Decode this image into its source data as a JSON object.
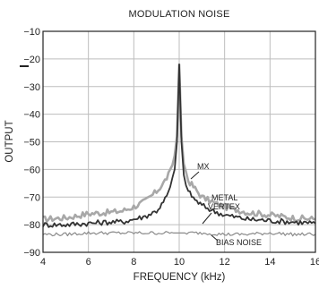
{
  "chart_data": {
    "type": "line",
    "title": "MODULATION NOISE",
    "xlabel": "FREQUENCY (kHz)",
    "ylabel": "OUTPUT",
    "xlim": [
      4,
      16
    ],
    "ylim": [
      -90,
      -10
    ],
    "xticks": [
      "4",
      "6",
      "8",
      "10",
      "12",
      "14",
      "16"
    ],
    "yticks": [
      "−10",
      "−20",
      "−30",
      "−40",
      "−50",
      "−60",
      "−70",
      "−80",
      "−90"
    ],
    "grid": true,
    "series": [
      {
        "name": "MX",
        "color": "#a8a8a8",
        "x": [
          4,
          5,
          6,
          7,
          7.5,
          8,
          8.5,
          9,
          9.3,
          9.6,
          9.8,
          9.9,
          10,
          10.1,
          10.2,
          10.4,
          10.7,
          11,
          11.5,
          12,
          13,
          14,
          15,
          16
        ],
        "y": [
          -78,
          -77.5,
          -76,
          -75.5,
          -75,
          -73.5,
          -71.5,
          -68,
          -65,
          -61,
          -55,
          -48,
          -22,
          -48,
          -58,
          -64,
          -67,
          -70,
          -72,
          -73.5,
          -75.5,
          -76.5,
          -77.5,
          -78
        ]
      },
      {
        "name": "METAL VERTEX",
        "color": "#333333",
        "x": [
          4,
          5,
          6,
          7,
          7.5,
          8,
          8.5,
          9,
          9.3,
          9.6,
          9.8,
          9.9,
          10,
          10.1,
          10.2,
          10.4,
          10.7,
          11,
          11.5,
          12,
          13,
          14,
          15,
          16
        ],
        "y": [
          -80,
          -80,
          -79.5,
          -79,
          -79,
          -78,
          -77,
          -75,
          -72,
          -67,
          -60,
          -50,
          -22,
          -50,
          -62,
          -68,
          -71,
          -73,
          -75,
          -76.5,
          -78,
          -78.5,
          -79,
          -79.5
        ]
      },
      {
        "name": "BIAS NOISE",
        "color": "#8a8a8a",
        "x": [
          4,
          5,
          6,
          7,
          8,
          9,
          10,
          11,
          12,
          13,
          14,
          15,
          16
        ],
        "y": [
          -83.5,
          -83.5,
          -83,
          -83,
          -83,
          -83,
          -83,
          -83,
          -83.5,
          -83.5,
          -83,
          -83.5,
          -83.5
        ]
      }
    ],
    "annotations": [
      {
        "text": "MX",
        "series": "MX"
      },
      {
        "text": "METAL",
        "series": "METAL VERTEX"
      },
      {
        "text": "VERTEX",
        "series": "METAL VERTEX"
      },
      {
        "text": "BIAS NOISE",
        "series": "BIAS NOISE"
      }
    ]
  }
}
